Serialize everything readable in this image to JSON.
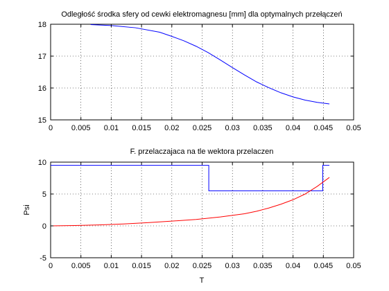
{
  "chart_data": [
    {
      "type": "line",
      "title": "Odległość środka sfery od cewki elektromagnesu [mm] dla optymalnych przełączeń",
      "xlabel": "",
      "ylabel": "",
      "xlim": [
        0,
        0.05
      ],
      "ylim": [
        15,
        18
      ],
      "xticks": [
        "0",
        "0.005",
        "0.01",
        "0.015",
        "0.02",
        "0.025",
        "0.03",
        "0.035",
        "0.04",
        "0.045",
        "0.05"
      ],
      "yticks": [
        "15",
        "16",
        "17",
        "18"
      ],
      "grid": true,
      "series": [
        {
          "color": "#0000ff",
          "x": [
            0.0066,
            0.01,
            0.014,
            0.018,
            0.02,
            0.022,
            0.024,
            0.026,
            0.028,
            0.03,
            0.032,
            0.034,
            0.036,
            0.038,
            0.04,
            0.042,
            0.044,
            0.046
          ],
          "y": [
            17.99,
            17.96,
            17.89,
            17.75,
            17.62,
            17.48,
            17.31,
            17.11,
            16.88,
            16.64,
            16.41,
            16.19,
            16.01,
            15.85,
            15.72,
            15.62,
            15.55,
            15.5
          ]
        }
      ]
    },
    {
      "type": "line",
      "title": "F. przelaczajaca na tle wektora przelaczen",
      "xlabel": "T",
      "ylabel": "Psi",
      "xlim": [
        0,
        0.05
      ],
      "ylim": [
        -5,
        10
      ],
      "xticks": [
        "0",
        "0.005",
        "0.01",
        "0.015",
        "0.02",
        "0.025",
        "0.03",
        "0.035",
        "0.04",
        "0.045",
        "0.05"
      ],
      "yticks": [
        "-5",
        "0",
        "5",
        "10"
      ],
      "grid": true,
      "series": [
        {
          "color": "#0000ff",
          "x": [
            0,
            0.0261,
            0.0261,
            0.0449,
            0.0449,
            0.046
          ],
          "y": [
            9.5,
            9.5,
            5.5,
            5.5,
            9.5,
            9.5
          ]
        },
        {
          "color": "#ff0000",
          "x": [
            0,
            0.004,
            0.008,
            0.012,
            0.016,
            0.02,
            0.024,
            0.028,
            0.032,
            0.034,
            0.036,
            0.038,
            0.04,
            0.042,
            0.044,
            0.046
          ],
          "y": [
            0,
            0.05,
            0.15,
            0.3,
            0.5,
            0.75,
            1.0,
            1.4,
            1.9,
            2.3,
            2.8,
            3.4,
            4.1,
            5.0,
            6.2,
            7.6
          ]
        }
      ]
    }
  ]
}
